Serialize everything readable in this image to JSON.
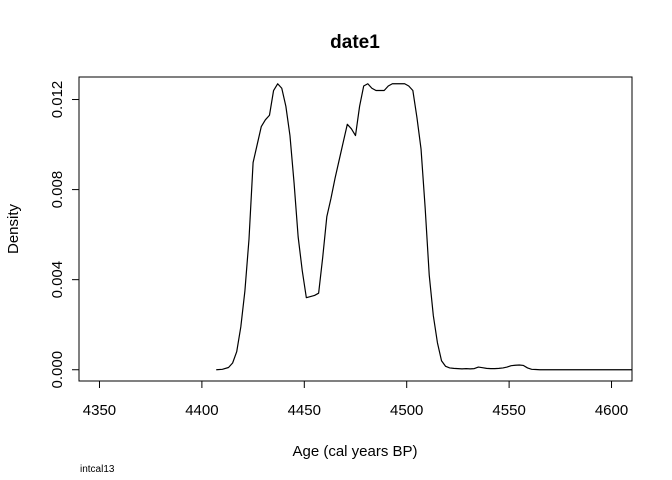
{
  "chart_data": {
    "type": "line",
    "title": "date1",
    "xlabel": "Age (cal years BP)",
    "ylabel": "Density",
    "footnote": "intcal13",
    "xlim": [
      4340,
      4610
    ],
    "ylim": [
      -0.0005,
      0.013
    ],
    "x_ticks": [
      4350,
      4400,
      4450,
      4500,
      4550,
      4600
    ],
    "x_tick_labels": [
      "4350",
      "4400",
      "4450",
      "4500",
      "4550",
      "4600"
    ],
    "y_ticks": [
      0.0,
      0.004,
      0.008,
      0.012
    ],
    "y_tick_labels": [
      "0.000",
      "0.004",
      "0.008",
      "0.012"
    ],
    "grid": false,
    "series": [
      {
        "x": [
          4407,
          4410,
          4413,
          4415,
          4417,
          4419,
          4421,
          4423,
          4425,
          4427,
          4429,
          4431,
          4433,
          4435,
          4437,
          4439,
          4441,
          4443,
          4445,
          4447,
          4449,
          4451,
          4453,
          4455,
          4457,
          4459,
          4461,
          4463,
          4465,
          4467,
          4469,
          4471,
          4473,
          4475,
          4477,
          4479,
          4481,
          4483,
          4485,
          4487,
          4489,
          4491,
          4493,
          4495,
          4497,
          4499,
          4501,
          4503,
          4505,
          4507,
          4509,
          4511,
          4513,
          4515,
          4517,
          4519,
          4521,
          4523,
          4525,
          4527,
          4529,
          4531,
          4533,
          4535,
          4537,
          4539,
          4541,
          4543,
          4545,
          4547,
          4549,
          4551,
          4553,
          4555,
          4557,
          4559,
          4561,
          4563,
          4565,
          4567,
          4569,
          4571,
          4573,
          4575,
          4580,
          4590,
          4600,
          4610
        ],
        "y": [
          0.0,
          2e-05,
          0.0001,
          0.0003,
          0.0008,
          0.0019,
          0.0035,
          0.0058,
          0.0092,
          0.01,
          0.0108,
          0.0111,
          0.0113,
          0.0124,
          0.0127,
          0.0125,
          0.0117,
          0.0104,
          0.0083,
          0.0059,
          0.0044,
          0.0032,
          0.00325,
          0.0033,
          0.0034,
          0.005,
          0.0068,
          0.0076,
          0.0085,
          0.0093,
          0.0101,
          0.0109,
          0.0107,
          0.0104,
          0.0117,
          0.0126,
          0.0127,
          0.0125,
          0.0124,
          0.0124,
          0.0124,
          0.0126,
          0.0127,
          0.0127,
          0.0127,
          0.0127,
          0.0126,
          0.0124,
          0.0112,
          0.0098,
          0.0072,
          0.0042,
          0.0024,
          0.0012,
          0.0004,
          0.00015,
          8e-05,
          6e-05,
          5e-05,
          4e-05,
          5e-05,
          4e-05,
          5e-05,
          0.00012,
          9e-05,
          6e-05,
          5e-05,
          5e-05,
          6e-05,
          8e-05,
          0.00012,
          0.00018,
          0.0002,
          0.00021,
          0.00019,
          8e-05,
          2e-05,
          1e-05,
          0.0,
          0.0,
          0.0,
          0.0,
          0.0,
          0.0,
          0.0,
          0.0,
          0.0,
          0.0
        ]
      }
    ]
  }
}
